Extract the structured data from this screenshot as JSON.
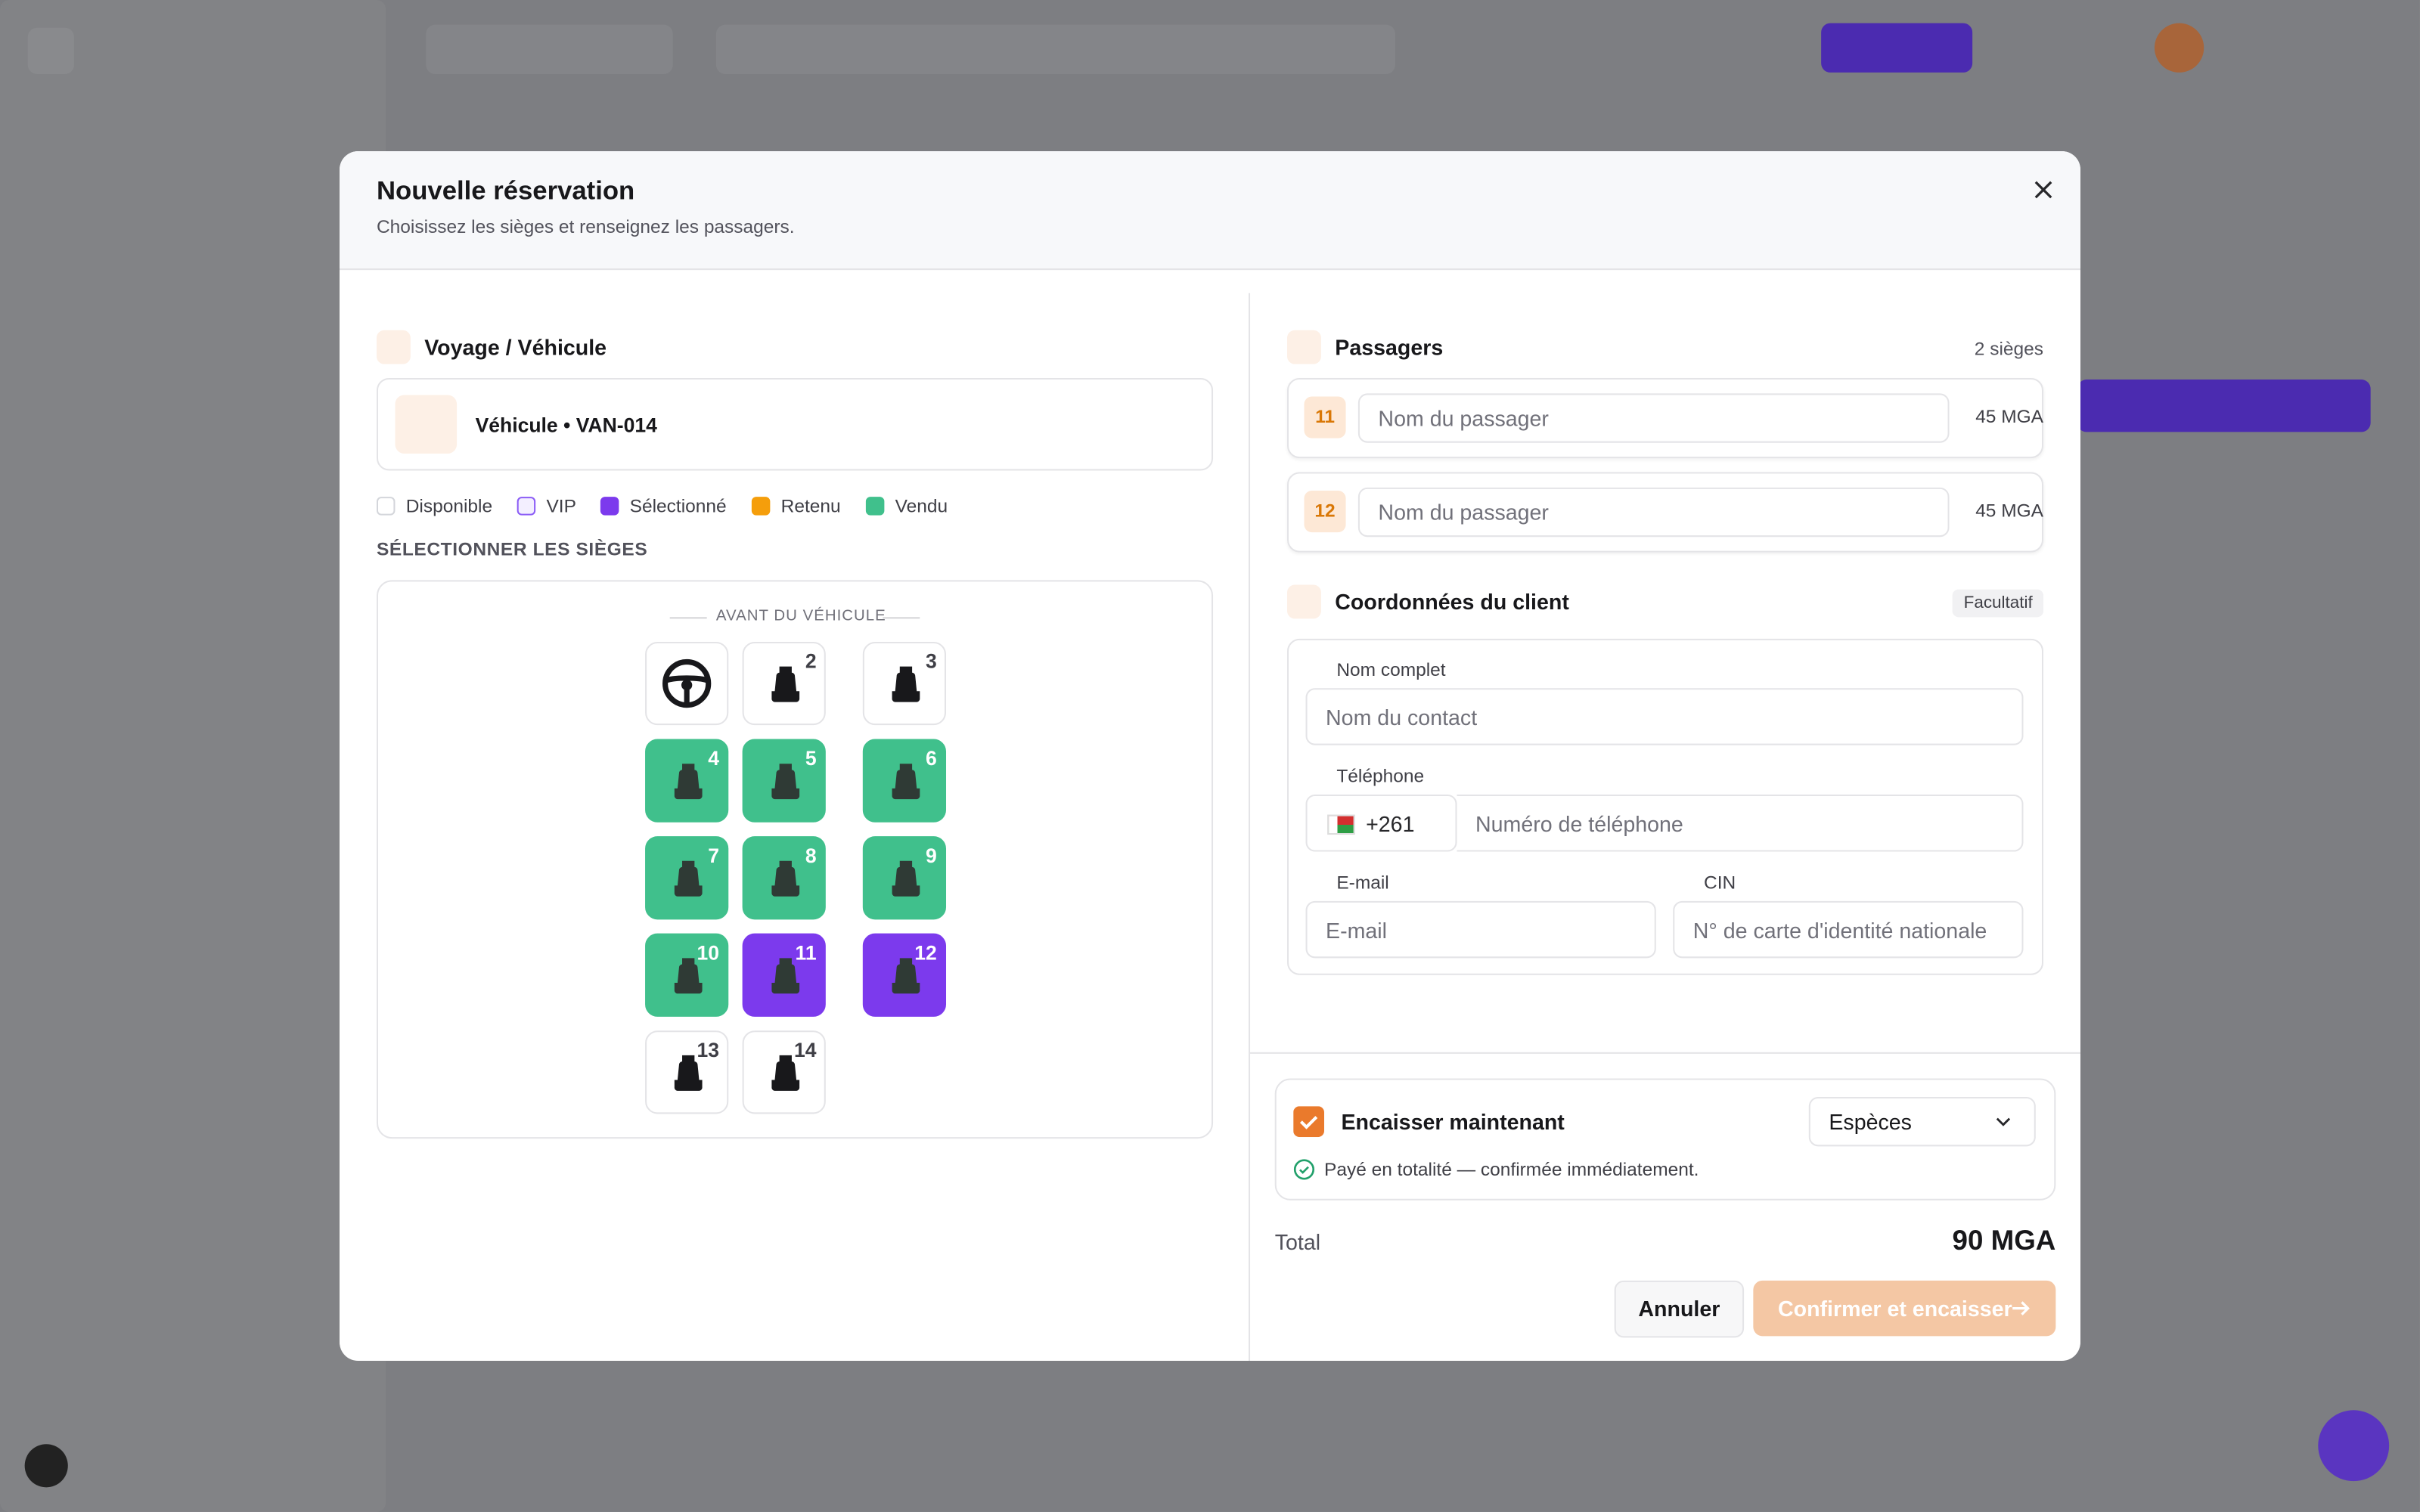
{
  "modal": {
    "title": "Nouvelle réservation",
    "subtitle": "Choisissez les sièges et renseignez les passagers."
  },
  "trip": {
    "section_title": "Voyage / Véhicule",
    "vehicle": "Véhicule • VAN-014",
    "legend": [
      {
        "label": "Disponible",
        "color": "#ffffff",
        "border": "#d4d6db"
      },
      {
        "label": "VIP",
        "color": "#f3efff",
        "border": "#8b5cf6"
      },
      {
        "label": "Sélectionné",
        "color": "#7c3aed",
        "border": "#7c3aed"
      },
      {
        "label": "Retenu",
        "color": "#f59e0b",
        "border": "#f59e0b"
      },
      {
        "label": "Vendu",
        "color": "#40c08c",
        "border": "#40c08c"
      }
    ],
    "seats_label": "SÉLECTIONNER LES SIÈGES",
    "front_label": "AVANT DU VÉHICULE",
    "seat_rows": [
      [
        {
          "number": null,
          "state": "Disponible"
        },
        {
          "number": "2",
          "state": "Disponible"
        },
        {
          "number": "3",
          "state": "Disponible"
        }
      ],
      [
        {
          "number": "4",
          "state": "Vendu"
        },
        {
          "number": "5",
          "state": "Vendu"
        },
        {
          "number": "6",
          "state": "Vendu"
        }
      ],
      [
        {
          "number": "7",
          "state": "Vendu"
        },
        {
          "number": "8",
          "state": "Vendu"
        },
        {
          "number": "9",
          "state": "Vendu"
        }
      ],
      [
        {
          "number": "10",
          "state": "Vendu"
        },
        {
          "number": "11",
          "state": "Sélectionné"
        },
        {
          "number": "12",
          "state": "Sélectionné"
        }
      ],
      [
        {
          "number": "13",
          "state": "Disponible"
        },
        {
          "number": "14",
          "state": "Disponible"
        }
      ]
    ]
  },
  "passengers": {
    "title": "Passagers",
    "count": "2 sièges",
    "items": [
      {
        "seat": "11",
        "placeholder": "Nom du passager",
        "price": "45 MGA"
      },
      {
        "seat": "12",
        "placeholder": "Nom du passager",
        "price": "45 MGA"
      }
    ]
  },
  "client": {
    "title": "Coordonnées du client",
    "badge": "Facultatif",
    "name_label": "Nom complet",
    "name_placeholder": "Nom du contact",
    "phone_label": "Téléphone",
    "phone_code": "+261",
    "phone_placeholder": "Numéro de téléphone",
    "email_label": "E-mail",
    "email_placeholder": "E-mail",
    "cin_label": "CIN",
    "cin_placeholder": "N° de carte d'identité nationale"
  },
  "payment": {
    "collect_label": "Encaisser maintenant",
    "method": "Espèces",
    "note": "Payé en totalité — confirmée immédiatement.",
    "total_label": "Total",
    "total": "90 MGA",
    "cancel": "Annuler",
    "confirm": "Confirmer et encaisser"
  }
}
